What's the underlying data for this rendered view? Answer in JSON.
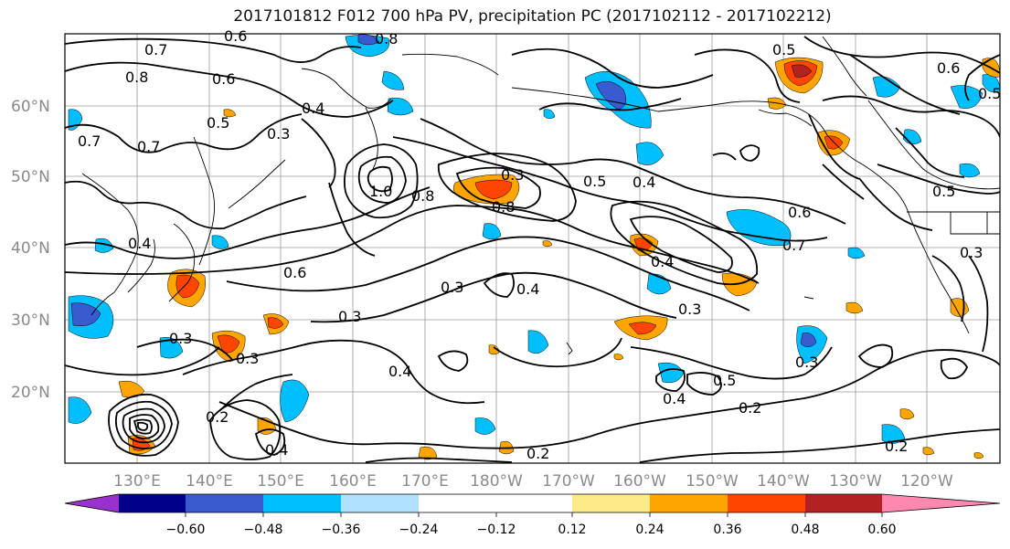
{
  "title": "2017101812 F012 700 hPa PV, precipitation PC (2017102112 - 2017102212)",
  "lat_labels": [
    "60°N",
    "50°N",
    "40°N",
    "30°N",
    "20°N"
  ],
  "lon_labels": [
    "130°E",
    "140°E",
    "150°E",
    "160°E",
    "170°E",
    "180°W",
    "170°W",
    "160°W",
    "150°W",
    "140°W",
    "130°W",
    "120°W"
  ],
  "contour_labels": [
    "0.7",
    "0.6",
    "0.8",
    "0.6",
    "0.7",
    "0.3",
    "0.4",
    "0.5",
    "0.7",
    "0.8",
    "1.0",
    "0.8",
    "0.3",
    "0.5",
    "0.4",
    "0.8",
    "0.6",
    "0.7",
    "0.4",
    "0.6",
    "0.3",
    "0.3",
    "0.4",
    "0.3",
    "0.3",
    "0.4",
    "0.3",
    "0.4",
    "0.5",
    "0.2",
    "0.2",
    "0.2",
    "0.2",
    "0.4",
    "0.6",
    "0.5",
    "0.3",
    "0.3",
    "0.5",
    "0.5",
    "0.4"
  ],
  "colorbar": {
    "ticks": [
      "−0.60",
      "−0.48",
      "−0.36",
      "−0.24",
      "−0.12",
      "0.12",
      "0.24",
      "0.36",
      "0.48",
      "0.60"
    ],
    "colors": [
      "#9932cc",
      "#00008b",
      "#3a5bcf",
      "#00bfff",
      "#b0e2ff",
      "#ffffff",
      "#ffea8a",
      "#ffa500",
      "#ff4500",
      "#b22222",
      "#ff88b0"
    ]
  }
}
